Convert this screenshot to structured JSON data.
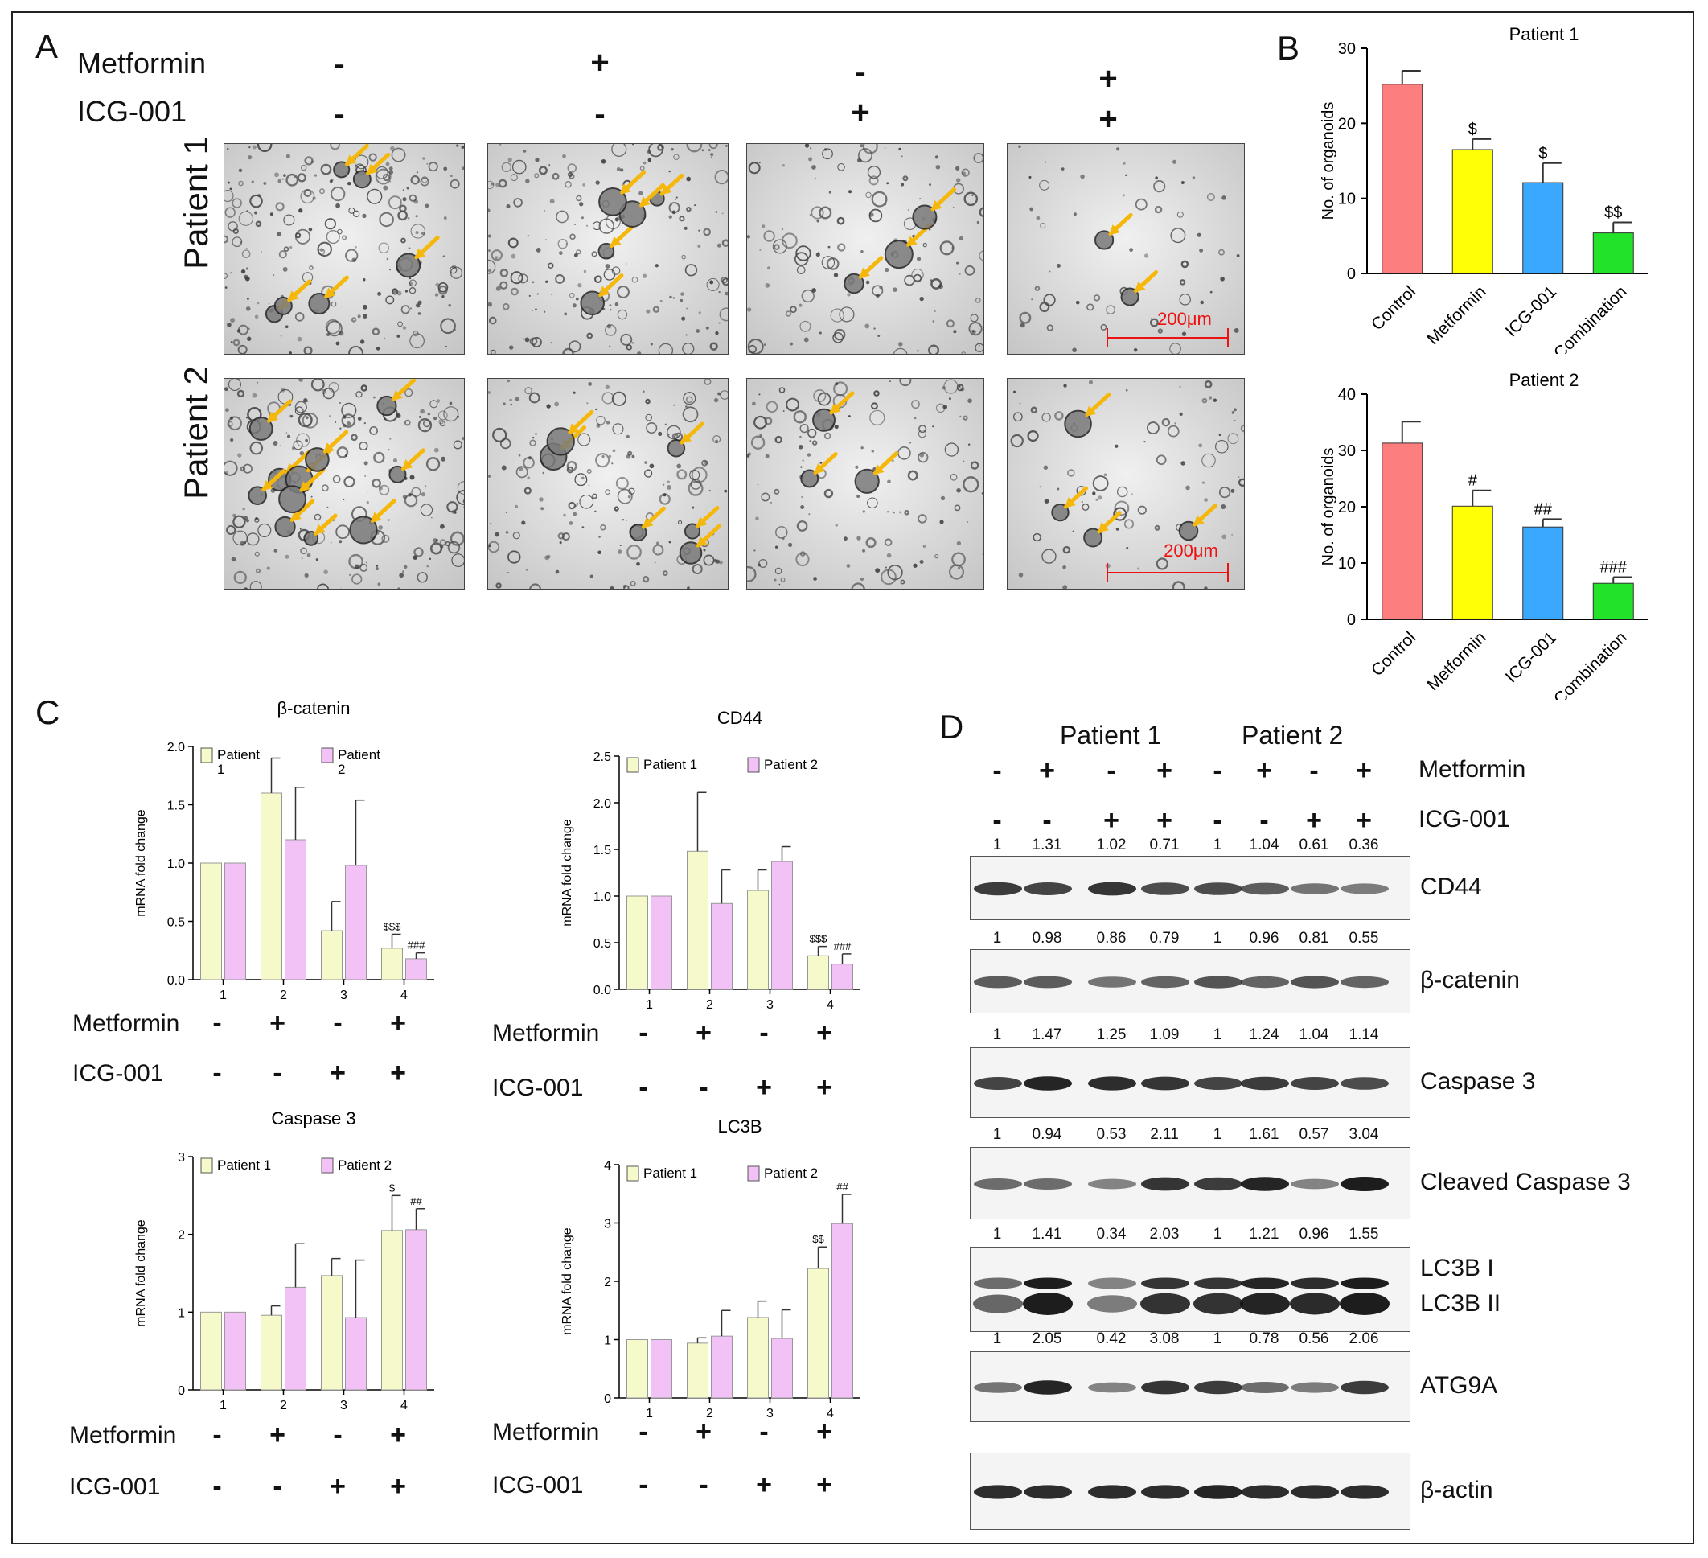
{
  "panel_labels": {
    "a": "A",
    "b": "B",
    "c": "C",
    "d": "D"
  },
  "panel_a": {
    "row_metformin": {
      "label": "Metformin",
      "signs": [
        "-",
        "+",
        "-",
        "+"
      ]
    },
    "row_icg": {
      "label": "ICG-001",
      "signs": [
        "-",
        "-",
        "+",
        "+"
      ]
    },
    "rows": [
      "Patient 1",
      "Patient 2"
    ],
    "scale_bar": "200μm"
  },
  "treatment_signs": {
    "metformin_label": "Metformin",
    "icg_label": "ICG-001",
    "metformin": [
      "-",
      "+",
      "-",
      "+"
    ],
    "icg": [
      "-",
      "-",
      "+",
      "+"
    ]
  },
  "panel_d": {
    "patients": [
      "Patient 1",
      "Patient 2"
    ],
    "metformin_label": "Metformin",
    "icg_label": "ICG-001",
    "metformin": [
      "-",
      "+",
      "-",
      "+",
      "-",
      "+",
      "-",
      "+"
    ],
    "icg": [
      "-",
      "-",
      "+",
      "+",
      "-",
      "-",
      "+",
      "+"
    ],
    "blots": [
      {
        "name": "CD44",
        "values": [
          "1",
          "1.31",
          "1.02",
          "0.71",
          "1",
          "1.04",
          "0.61",
          "0.36"
        ],
        "intensity": [
          0.8,
          0.75,
          0.85,
          0.7,
          0.7,
          0.6,
          0.45,
          0.4
        ]
      },
      {
        "name": "β-catenin",
        "values": [
          "1",
          "0.98",
          "0.86",
          "0.79",
          "1",
          "0.96",
          "0.81",
          "0.55"
        ],
        "intensity": [
          0.6,
          0.6,
          0.45,
          0.55,
          0.65,
          0.55,
          0.65,
          0.55
        ]
      },
      {
        "name": "Caspase 3",
        "values": [
          "1",
          "1.47",
          "1.25",
          "1.09",
          "1",
          "1.24",
          "1.04",
          "1.14"
        ],
        "intensity": [
          0.75,
          0.95,
          0.9,
          0.85,
          0.75,
          0.8,
          0.75,
          0.7
        ]
      },
      {
        "name": "Cleaved Caspase 3",
        "values": [
          "1",
          "0.94",
          "0.53",
          "2.11",
          "1",
          "1.61",
          "0.57",
          "3.04"
        ],
        "intensity": [
          0.5,
          0.5,
          0.35,
          0.85,
          0.8,
          0.95,
          0.35,
          1.0
        ]
      },
      {
        "name": "LC3B I\nLC3B II",
        "line1": "LC3B I",
        "line2": "LC3B II",
        "values": [
          "1",
          "1.41",
          "0.34",
          "2.03",
          "1",
          "1.21",
          "0.96",
          "1.55"
        ],
        "intensity": [
          0.5,
          1.0,
          0.35,
          0.85,
          0.85,
          0.95,
          0.9,
          1.0
        ]
      },
      {
        "name": "ATG9A",
        "values": [
          "1",
          "2.05",
          "0.42",
          "3.08",
          "1",
          "0.78",
          "0.56",
          "2.06"
        ],
        "intensity": [
          0.45,
          0.95,
          0.35,
          0.85,
          0.8,
          0.5,
          0.4,
          0.8
        ]
      },
      {
        "name": "β-actin",
        "values": [],
        "intensity": [
          0.9,
          0.9,
          0.9,
          0.9,
          0.95,
          0.9,
          0.9,
          0.9
        ]
      }
    ]
  },
  "chart_data": [
    {
      "id": "b1",
      "type": "bar",
      "title": "Patient 1",
      "ylabel": "No. of organoids",
      "categories": [
        "Control",
        "Metformin",
        "ICG-001",
        "Combination"
      ],
      "values": [
        25.2,
        16.5,
        12.1,
        5.4
      ],
      "errors": [
        1.8,
        1.4,
        2.6,
        1.4
      ],
      "annotations": [
        "",
        "$",
        "$",
        "$$"
      ],
      "colors": [
        "#fc7e7e",
        "#ffff05",
        "#3aa8ff",
        "#22e22a"
      ],
      "ylim": [
        0,
        30
      ],
      "yticks": [
        0,
        10,
        20,
        30
      ]
    },
    {
      "id": "b2",
      "type": "bar",
      "title": "Patient 2",
      "ylabel": "No. of organoids",
      "categories": [
        "Control",
        "Metformin",
        "ICG-001",
        "Combination"
      ],
      "values": [
        31.3,
        20.1,
        16.4,
        6.4
      ],
      "errors": [
        3.8,
        2.8,
        1.4,
        1.1
      ],
      "annotations": [
        "",
        "#",
        "##",
        "###"
      ],
      "colors": [
        "#fc7e7e",
        "#ffff05",
        "#3aa8ff",
        "#22e22a"
      ],
      "ylim": [
        0,
        40
      ],
      "yticks": [
        0,
        10,
        20,
        30,
        40
      ]
    },
    {
      "id": "c1",
      "type": "bar",
      "title": "β-catenin",
      "ylabel": "mRNA fold change",
      "categories": [
        "1",
        "2",
        "3",
        "4"
      ],
      "series": [
        {
          "name": "Patient 1",
          "legend_lines": [
            "Patient",
            "1"
          ],
          "values": [
            1.0,
            1.6,
            0.42,
            0.27
          ],
          "errors": [
            0,
            0.3,
            0.25,
            0.12
          ],
          "color": "#f6f9c9"
        },
        {
          "name": "Patient 2",
          "legend_lines": [
            "Patient",
            "2"
          ],
          "values": [
            1.0,
            1.2,
            0.98,
            0.18
          ],
          "errors": [
            0,
            0.45,
            0.56,
            0.05
          ],
          "color": "#f2c1f5"
        }
      ],
      "annotations": [
        [
          "",
          ""
        ],
        [
          "",
          ""
        ],
        [
          "",
          ""
        ],
        [
          "$$$",
          "###"
        ]
      ],
      "ylim": [
        0,
        2.0
      ],
      "yticks": [
        "0.0",
        "0.5",
        "1.0",
        "1.5",
        "2.0"
      ]
    },
    {
      "id": "c2",
      "type": "bar",
      "title": "CD44",
      "ylabel": "mRNA fold change",
      "categories": [
        "1",
        "2",
        "3",
        "4"
      ],
      "series": [
        {
          "name": "Patient 1",
          "legend_lines": [
            "Patient 1"
          ],
          "values": [
            1.0,
            1.48,
            1.06,
            0.36
          ],
          "errors": [
            0,
            0.63,
            0.22,
            0.1
          ],
          "color": "#f6f9c9"
        },
        {
          "name": "Patient 2",
          "legend_lines": [
            "Patient 2"
          ],
          "values": [
            1.0,
            0.92,
            1.37,
            0.27
          ],
          "errors": [
            0,
            0.36,
            0.16,
            0.11
          ],
          "color": "#f2c1f5"
        }
      ],
      "annotations": [
        [
          "",
          ""
        ],
        [
          "",
          ""
        ],
        [
          "",
          ""
        ],
        [
          "$$$",
          "###"
        ]
      ],
      "ylim": [
        0,
        2.5
      ],
      "yticks": [
        "0.0",
        "0.5",
        "1.0",
        "1.5",
        "2.0",
        "2.5"
      ]
    },
    {
      "id": "c3",
      "type": "bar",
      "title": "Caspase 3",
      "ylabel": "mRNA fold change",
      "categories": [
        "1",
        "2",
        "3",
        "4"
      ],
      "series": [
        {
          "name": "Patient 1",
          "legend_lines": [
            "Patient 1"
          ],
          "values": [
            1.0,
            0.96,
            1.47,
            2.05
          ],
          "errors": [
            0,
            0.12,
            0.22,
            0.45
          ],
          "color": "#f6f9c9"
        },
        {
          "name": "Patient 2",
          "legend_lines": [
            "Patient 2"
          ],
          "values": [
            1.0,
            1.32,
            0.93,
            2.06
          ],
          "errors": [
            0,
            0.56,
            0.74,
            0.27
          ],
          "color": "#f2c1f5"
        }
      ],
      "annotations": [
        [
          "",
          ""
        ],
        [
          "",
          ""
        ],
        [
          "",
          ""
        ],
        [
          "$",
          "##"
        ]
      ],
      "ylim": [
        0,
        3
      ],
      "yticks": [
        "0",
        "1",
        "2",
        "3"
      ]
    },
    {
      "id": "c4",
      "type": "bar",
      "title": "LC3B",
      "ylabel": "mRNA fold change",
      "categories": [
        "1",
        "2",
        "3",
        "4"
      ],
      "series": [
        {
          "name": "Patient 1",
          "legend_lines": [
            "Patient 1"
          ],
          "values": [
            1.0,
            0.94,
            1.38,
            2.22
          ],
          "errors": [
            0,
            0.09,
            0.28,
            0.37
          ],
          "color": "#f6f9c9"
        },
        {
          "name": "Patient 2",
          "legend_lines": [
            "Patient 2"
          ],
          "values": [
            1.0,
            1.06,
            1.02,
            2.99
          ],
          "errors": [
            0,
            0.44,
            0.49,
            0.5
          ],
          "color": "#f2c1f5"
        }
      ],
      "annotations": [
        [
          "",
          ""
        ],
        [
          "",
          ""
        ],
        [
          "",
          ""
        ],
        [
          "$$",
          "##"
        ]
      ],
      "ylim": [
        0,
        4
      ],
      "yticks": [
        "0",
        "1",
        "2",
        "3",
        "4"
      ]
    }
  ]
}
